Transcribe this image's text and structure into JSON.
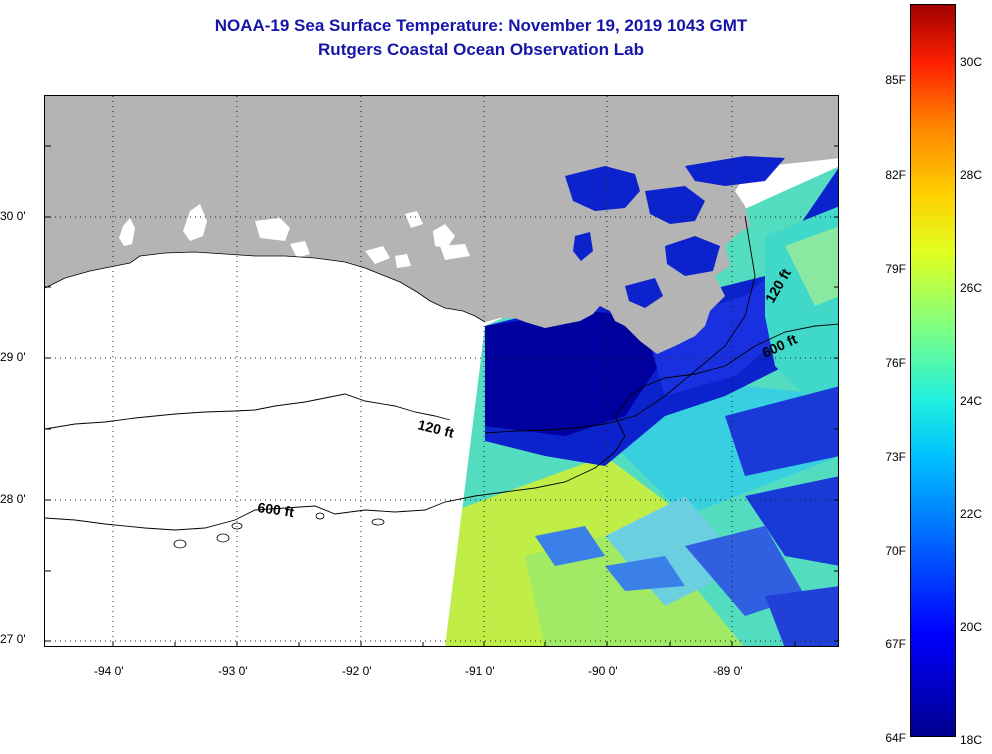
{
  "title": {
    "line1": "NOAA-19 Sea Surface Temperature:  November 19, 2019 1043 GMT",
    "line2": "Rutgers Coastal Ocean Observation Lab"
  },
  "latitude_labels": [
    "30 0'",
    "29 0'",
    "28 0'",
    "27 0'"
  ],
  "longitude_labels": [
    "-94 0'",
    "-93 0'",
    "-92 0'",
    "-91 0'",
    "-90 0'",
    "-89 0'"
  ],
  "contours": {
    "shelf_120": "120 ft",
    "slope_600": "600 ft",
    "east_120": "120 ft",
    "east_600": "600 ft"
  },
  "colorbar": {
    "fahrenheit_labels": [
      "85F",
      "82F",
      "79F",
      "76F",
      "73F",
      "70F",
      "67F",
      "64F"
    ],
    "celsius_labels": [
      "30C",
      "28C",
      "26C",
      "24C",
      "22C",
      "20C",
      "18C"
    ],
    "colormap": "jet",
    "range_c": [
      18,
      31
    ]
  },
  "colors": {
    "land": "#b4b4b4",
    "no_data": "#ffffff",
    "title": "#1515a8"
  }
}
